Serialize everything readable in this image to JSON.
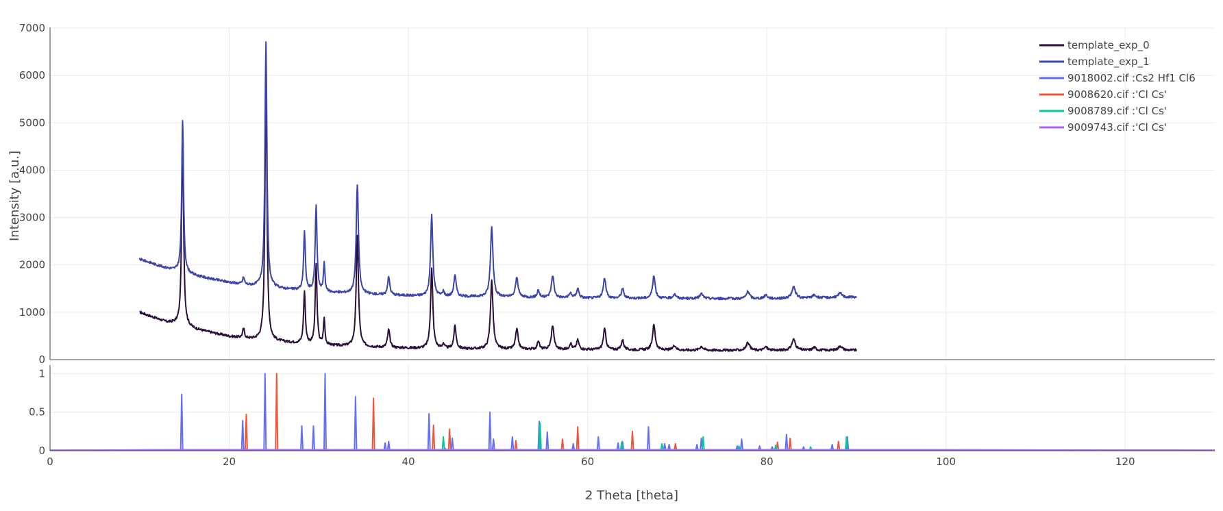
{
  "chart_data": {
    "type": "line",
    "xlabel": "2 Theta [theta]",
    "xlim": [
      0,
      130
    ],
    "x_ticks": [
      "0",
      "20",
      "40",
      "60",
      "80",
      "100",
      "120"
    ],
    "grid": true,
    "legend_position": "top-right",
    "panels": {
      "top": {
        "ylabel": "Intensity [a.u.]",
        "ylim": [
          0,
          7000
        ],
        "y_ticks": [
          "0",
          "1000",
          "2000",
          "3000",
          "4000",
          "5000",
          "6000",
          "7000"
        ]
      },
      "bottom": {
        "ylim": [
          0,
          1.1
        ],
        "y_ticks": [
          "0",
          "0.5",
          "1"
        ]
      }
    },
    "series": [
      {
        "name": "template_exp_0",
        "panel": "top",
        "kind": "pattern",
        "color": "#2a0f3a",
        "x_range": [
          10,
          90
        ],
        "baseline": [
          [
            10,
            1000
          ],
          [
            11,
            930
          ],
          [
            12,
            860
          ],
          [
            13,
            790
          ],
          [
            14,
            760
          ],
          [
            15,
            720
          ],
          [
            16,
            650
          ],
          [
            18,
            570
          ],
          [
            20,
            490
          ],
          [
            22,
            440
          ],
          [
            24,
            400
          ],
          [
            26,
            370
          ],
          [
            28,
            340
          ],
          [
            30,
            310
          ],
          [
            32,
            290
          ],
          [
            35,
            270
          ],
          [
            38,
            250
          ],
          [
            42,
            235
          ],
          [
            50,
            220
          ],
          [
            60,
            210
          ],
          [
            70,
            200
          ],
          [
            80,
            195
          ],
          [
            90,
            200
          ]
        ],
        "peaks": [
          [
            14.8,
            4250,
            0.12
          ],
          [
            21.6,
            200,
            0.12
          ],
          [
            24.1,
            5500,
            0.13
          ],
          [
            28.4,
            1100,
            0.12
          ],
          [
            29.7,
            1700,
            0.12
          ],
          [
            30.6,
            550,
            0.1
          ],
          [
            34.3,
            2330,
            0.15
          ],
          [
            37.8,
            380,
            0.15
          ],
          [
            42.6,
            1690,
            0.15
          ],
          [
            43.9,
            100,
            0.12
          ],
          [
            45.2,
            480,
            0.15
          ],
          [
            49.3,
            1440,
            0.17
          ],
          [
            52.1,
            420,
            0.17
          ],
          [
            54.5,
            180,
            0.14
          ],
          [
            56.1,
            510,
            0.17
          ],
          [
            58.1,
            130,
            0.15
          ],
          [
            58.9,
            200,
            0.16
          ],
          [
            61.9,
            440,
            0.17
          ],
          [
            63.9,
            210,
            0.16
          ],
          [
            67.4,
            530,
            0.18
          ],
          [
            69.7,
            100,
            0.2
          ],
          [
            72.7,
            80,
            0.22
          ],
          [
            77.9,
            170,
            0.22
          ],
          [
            79.9,
            70,
            0.22
          ],
          [
            83.0,
            230,
            0.25
          ],
          [
            85.3,
            60,
            0.22
          ],
          [
            88.2,
            90,
            0.25
          ]
        ]
      },
      {
        "name": "template_exp_1",
        "panel": "top",
        "kind": "pattern",
        "color": "#3b44a8",
        "x_range": [
          10,
          90
        ],
        "baseline": [
          [
            10,
            2120
          ],
          [
            11,
            2060
          ],
          [
            12,
            1990
          ],
          [
            13,
            1930
          ],
          [
            14,
            1880
          ],
          [
            15,
            1830
          ],
          [
            16,
            1780
          ],
          [
            18,
            1700
          ],
          [
            20,
            1630
          ],
          [
            22,
            1570
          ],
          [
            24,
            1530
          ],
          [
            26,
            1490
          ],
          [
            28,
            1460
          ],
          [
            30,
            1430
          ],
          [
            32,
            1410
          ],
          [
            35,
            1380
          ],
          [
            38,
            1360
          ],
          [
            42,
            1340
          ],
          [
            50,
            1320
          ],
          [
            60,
            1300
          ],
          [
            70,
            1290
          ],
          [
            80,
            1285
          ],
          [
            90,
            1320
          ]
        ],
        "peaks": [
          [
            14.8,
            3220,
            0.12
          ],
          [
            21.6,
            150,
            0.12
          ],
          [
            24.1,
            5150,
            0.13
          ],
          [
            28.4,
            1230,
            0.12
          ],
          [
            29.7,
            1820,
            0.12
          ],
          [
            30.6,
            590,
            0.1
          ],
          [
            34.3,
            2320,
            0.15
          ],
          [
            37.8,
            380,
            0.15
          ],
          [
            42.6,
            1710,
            0.15
          ],
          [
            43.9,
            100,
            0.12
          ],
          [
            45.2,
            460,
            0.15
          ],
          [
            49.3,
            1480,
            0.17
          ],
          [
            52.1,
            420,
            0.17
          ],
          [
            54.5,
            160,
            0.14
          ],
          [
            56.1,
            470,
            0.17
          ],
          [
            58.1,
            100,
            0.15
          ],
          [
            58.9,
            200,
            0.16
          ],
          [
            61.9,
            420,
            0.17
          ],
          [
            63.9,
            200,
            0.16
          ],
          [
            67.4,
            470,
            0.18
          ],
          [
            69.7,
            90,
            0.2
          ],
          [
            72.7,
            100,
            0.22
          ],
          [
            77.9,
            150,
            0.22
          ],
          [
            79.9,
            80,
            0.22
          ],
          [
            83.0,
            230,
            0.25
          ],
          [
            85.3,
            60,
            0.22
          ],
          [
            88.2,
            90,
            0.25
          ]
        ]
      },
      {
        "name": "9018002.cif :Cs2 Hf1 Cl6",
        "panel": "bottom",
        "kind": "sticks",
        "color": "#636efa",
        "sticks": [
          [
            14.7,
            0.73
          ],
          [
            21.5,
            0.39
          ],
          [
            24.0,
            1.0
          ],
          [
            28.1,
            0.32
          ],
          [
            29.4,
            0.32
          ],
          [
            30.7,
            1.0
          ],
          [
            34.1,
            0.7
          ],
          [
            37.4,
            0.1
          ],
          [
            37.8,
            0.12
          ],
          [
            42.3,
            0.48
          ],
          [
            44.9,
            0.16
          ],
          [
            49.1,
            0.5
          ],
          [
            49.5,
            0.15
          ],
          [
            51.6,
            0.18
          ],
          [
            54.6,
            0.38
          ],
          [
            55.5,
            0.24
          ],
          [
            58.4,
            0.09
          ],
          [
            61.2,
            0.18
          ],
          [
            63.4,
            0.1
          ],
          [
            63.9,
            0.12
          ],
          [
            66.8,
            0.31
          ],
          [
            68.6,
            0.09
          ],
          [
            69.1,
            0.08
          ],
          [
            72.2,
            0.08
          ],
          [
            72.7,
            0.16
          ],
          [
            76.7,
            0.06
          ],
          [
            77.2,
            0.15
          ],
          [
            79.2,
            0.06
          ],
          [
            80.6,
            0.05
          ],
          [
            82.2,
            0.21
          ],
          [
            84.1,
            0.05
          ],
          [
            87.3,
            0.08
          ],
          [
            89.0,
            0.18
          ]
        ]
      },
      {
        "name": "9008620.cif :'Cl Cs'",
        "panel": "bottom",
        "kind": "sticks",
        "color": "#ef553b",
        "sticks": [
          [
            21.9,
            0.47
          ],
          [
            25.3,
            1.0
          ],
          [
            36.1,
            0.68
          ],
          [
            42.8,
            0.33
          ],
          [
            44.6,
            0.28
          ],
          [
            52.0,
            0.13
          ],
          [
            57.2,
            0.15
          ],
          [
            58.9,
            0.31
          ],
          [
            65.0,
            0.25
          ],
          [
            69.8,
            0.09
          ],
          [
            81.2,
            0.11
          ],
          [
            82.6,
            0.16
          ],
          [
            88.0,
            0.12
          ]
        ]
      },
      {
        "name": "9008789.cif :'Cl Cs'",
        "panel": "bottom",
        "kind": "sticks",
        "color": "#00cc96",
        "sticks": [
          [
            43.9,
            0.18
          ],
          [
            54.7,
            0.36
          ],
          [
            63.8,
            0.11
          ],
          [
            68.3,
            0.09
          ],
          [
            72.9,
            0.18
          ],
          [
            76.9,
            0.06
          ],
          [
            81.0,
            0.07
          ],
          [
            84.9,
            0.05
          ],
          [
            88.9,
            0.18
          ]
        ]
      },
      {
        "name": "9009743.cif :'Cl Cs'",
        "panel": "bottom",
        "kind": "sticks",
        "color": "#ab63fa",
        "sticks": [
          [
            14.8,
            0.02
          ],
          [
            21.8,
            0.03
          ],
          [
            30.8,
            0.03
          ],
          [
            44.1,
            0.03
          ],
          [
            49.6,
            0.03
          ],
          [
            59.0,
            0.02
          ],
          [
            72.9,
            0.02
          ],
          [
            89.0,
            0.02
          ]
        ]
      }
    ]
  }
}
